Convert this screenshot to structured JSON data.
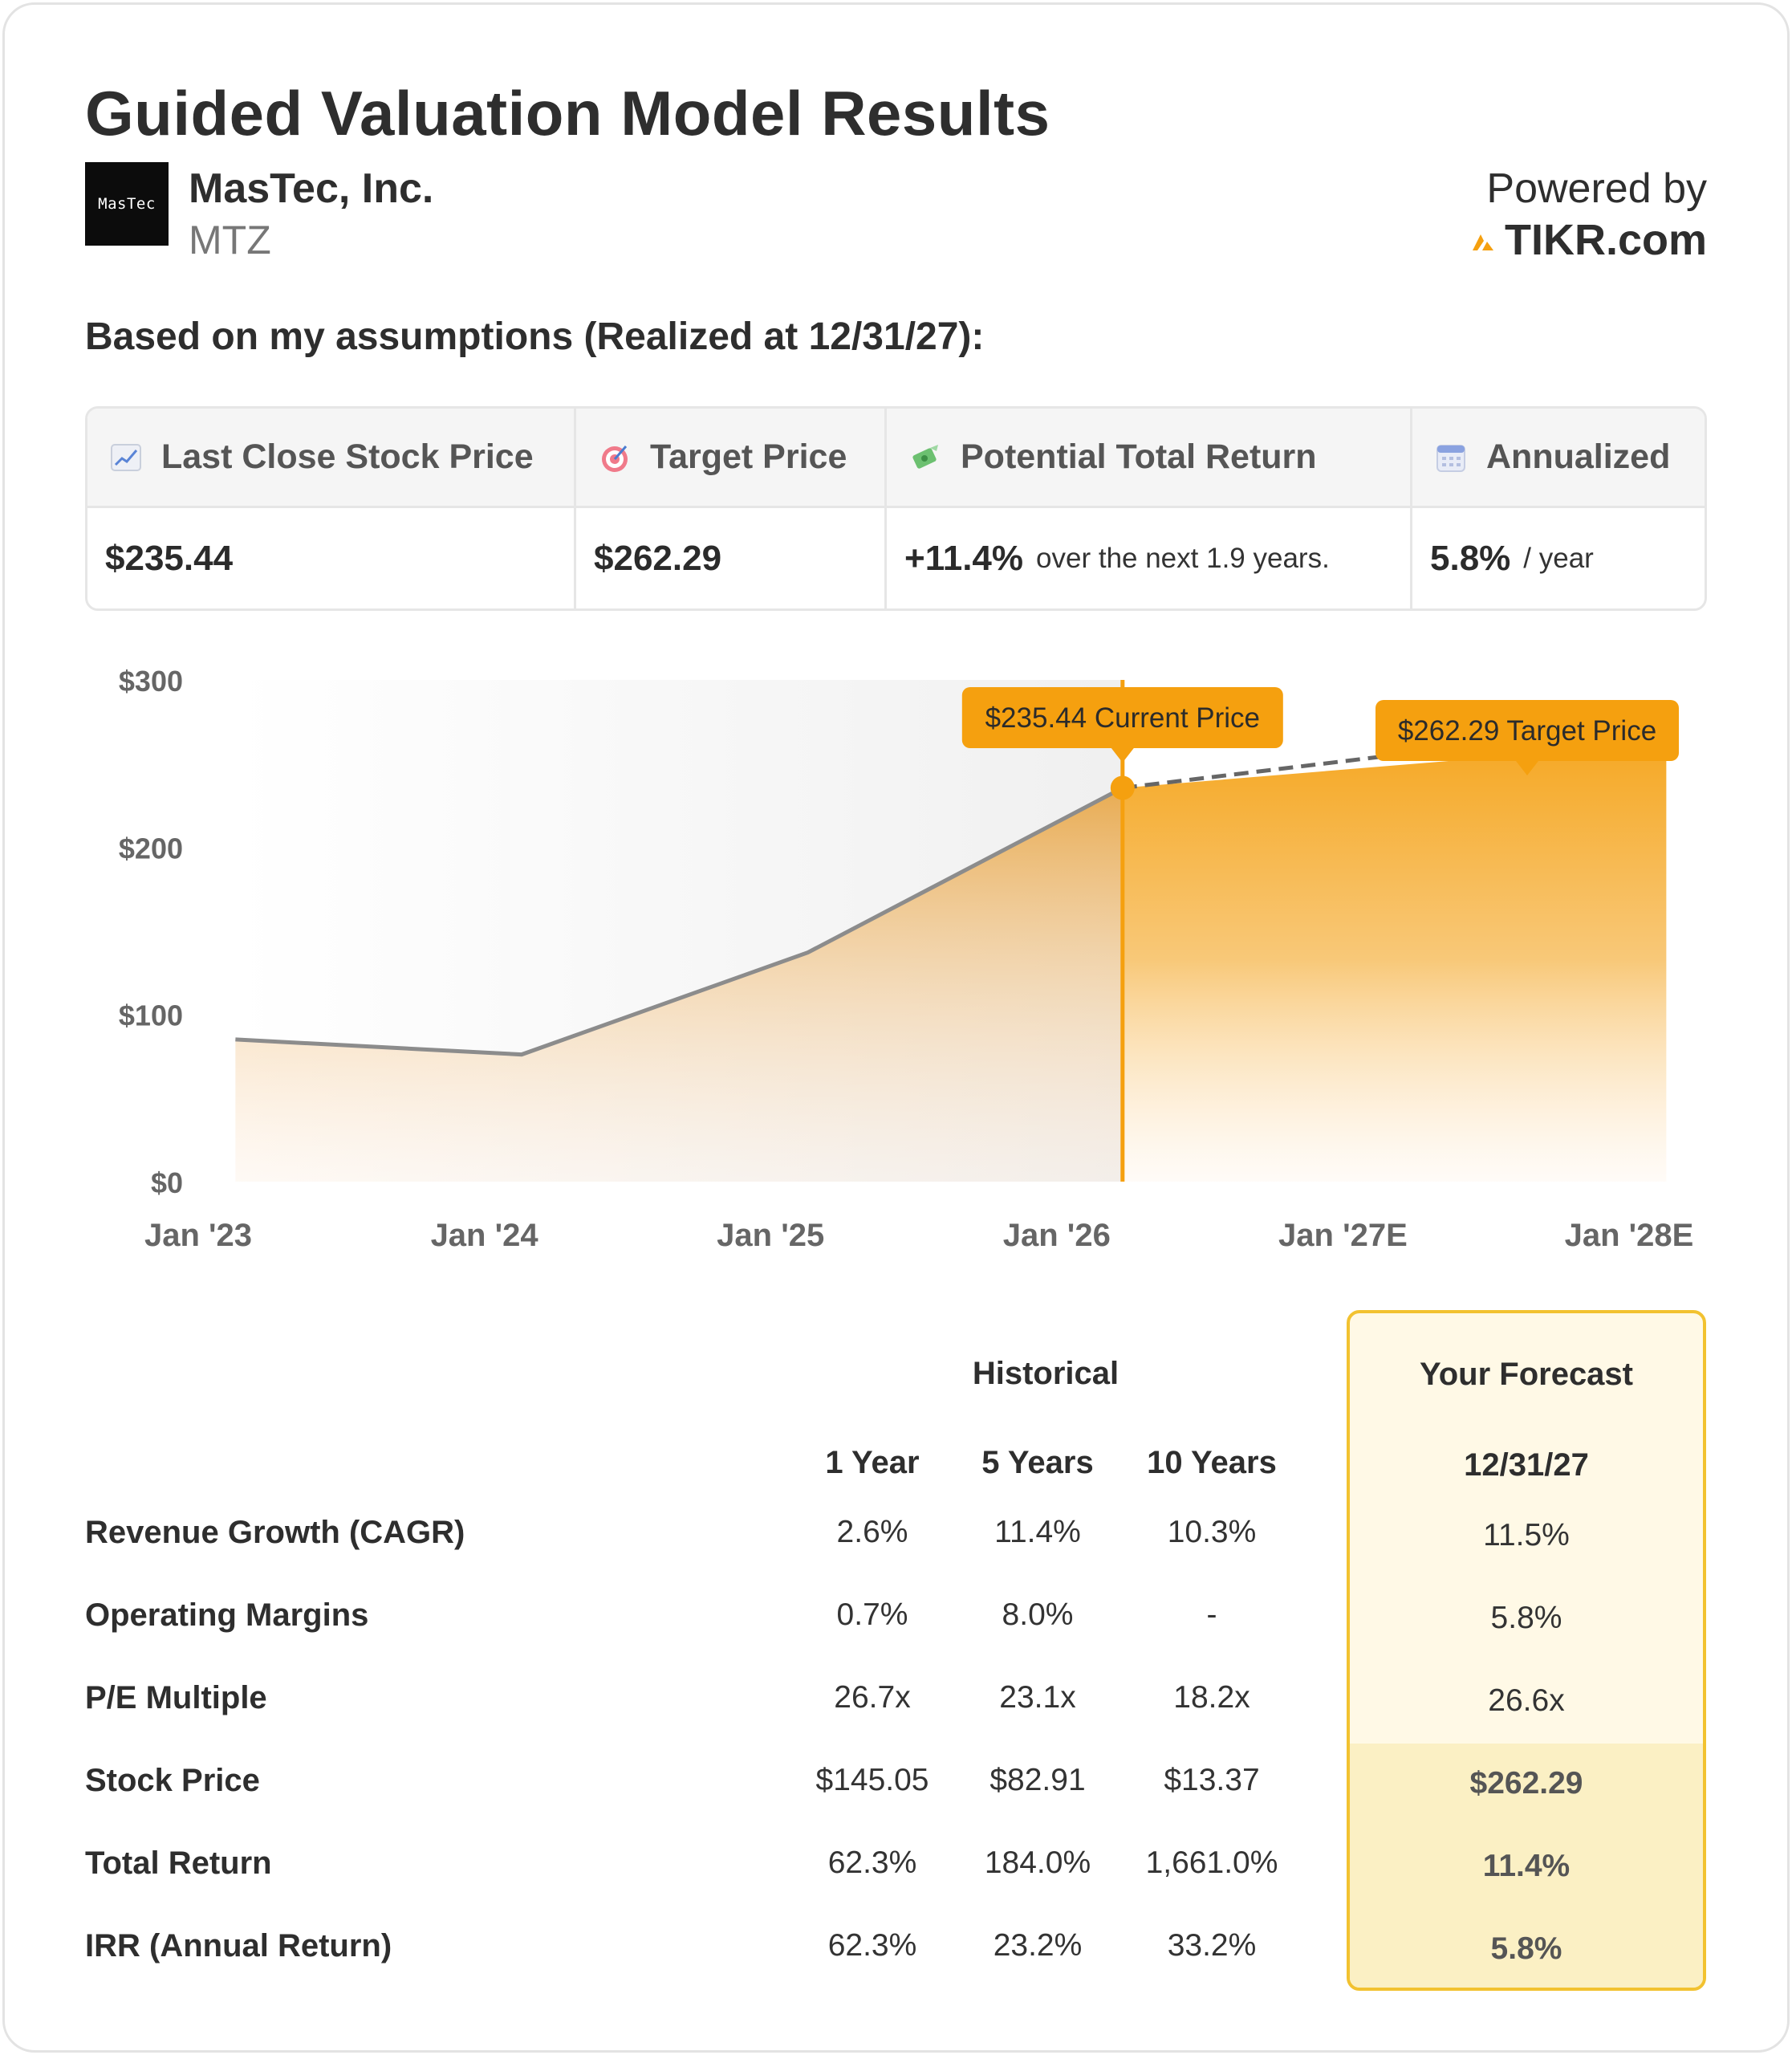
{
  "header": {
    "title": "Guided Valuation Model Results",
    "logo_text": "MasTec",
    "company_name": "MasTec, Inc.",
    "ticker": "MTZ",
    "powered_by": "Powered by",
    "brand": "TIKR.com",
    "brand_color": "#f5a00f"
  },
  "assumptions_label": "Based on my assumptions (Realized at 12/31/27):",
  "metrics": [
    {
      "icon": "chart-increasing-icon",
      "label": "Last Close Stock Price",
      "value": "$235.44",
      "sub": ""
    },
    {
      "icon": "target-icon",
      "label": "Target Price",
      "value": "$262.29",
      "sub": ""
    },
    {
      "icon": "money-wings-icon",
      "label": "Potential Total Return",
      "value": "+11.4%",
      "sub": "over the next 1.9 years."
    },
    {
      "icon": "calendar-icon",
      "label": "Annualized",
      "value": "5.8%",
      "sub": "/ year"
    }
  ],
  "chart_data": {
    "type": "area",
    "x_ticks": [
      "Jan '23",
      "Jan '24",
      "Jan '25",
      "Jan '26",
      "Jan '27E",
      "Jan '28E"
    ],
    "y_ticks": [
      "$0",
      "$100",
      "$200",
      "$300"
    ],
    "ylim": [
      0,
      300
    ],
    "xlim": [
      2023.0,
      2028.0
    ],
    "historical": {
      "x": [
        2023.13,
        2024.13,
        2025.13,
        2026.23
      ],
      "y": [
        85,
        76,
        137,
        235.44
      ]
    },
    "forecast": {
      "x": [
        2026.23,
        2028.13
      ],
      "y": [
        235.44,
        262.29
      ]
    },
    "current_label": "$235.44 Current Price",
    "target_label": "$262.29 Target Price",
    "accent_color": "#f5a00f",
    "line_color": "#8c8c8c",
    "grid": false
  },
  "table": {
    "historical_header": "Historical",
    "forecast_header": "Your Forecast",
    "columns": [
      "1 Year",
      "5 Years",
      "10 Years"
    ],
    "forecast_date": "12/31/27",
    "rows": [
      {
        "label": "Revenue Growth (CAGR)",
        "values": [
          "2.6%",
          "11.4%",
          "10.3%"
        ],
        "forecast": "11.5%"
      },
      {
        "label": "Operating Margins",
        "values": [
          "0.7%",
          "8.0%",
          "-"
        ],
        "forecast": "5.8%"
      },
      {
        "label": "P/E Multiple",
        "values": [
          "26.7x",
          "23.1x",
          "18.2x"
        ],
        "forecast": "26.6x"
      },
      {
        "label": "Stock Price",
        "values": [
          "$145.05",
          "$82.91",
          "$13.37"
        ],
        "forecast": "$262.29"
      },
      {
        "label": "Total Return",
        "values": [
          "62.3%",
          "184.0%",
          "1,661.0%"
        ],
        "forecast": "11.4%"
      },
      {
        "label": "IRR (Annual Return)",
        "values": [
          "62.3%",
          "23.2%",
          "33.2%"
        ],
        "forecast": "5.8%"
      }
    ]
  }
}
